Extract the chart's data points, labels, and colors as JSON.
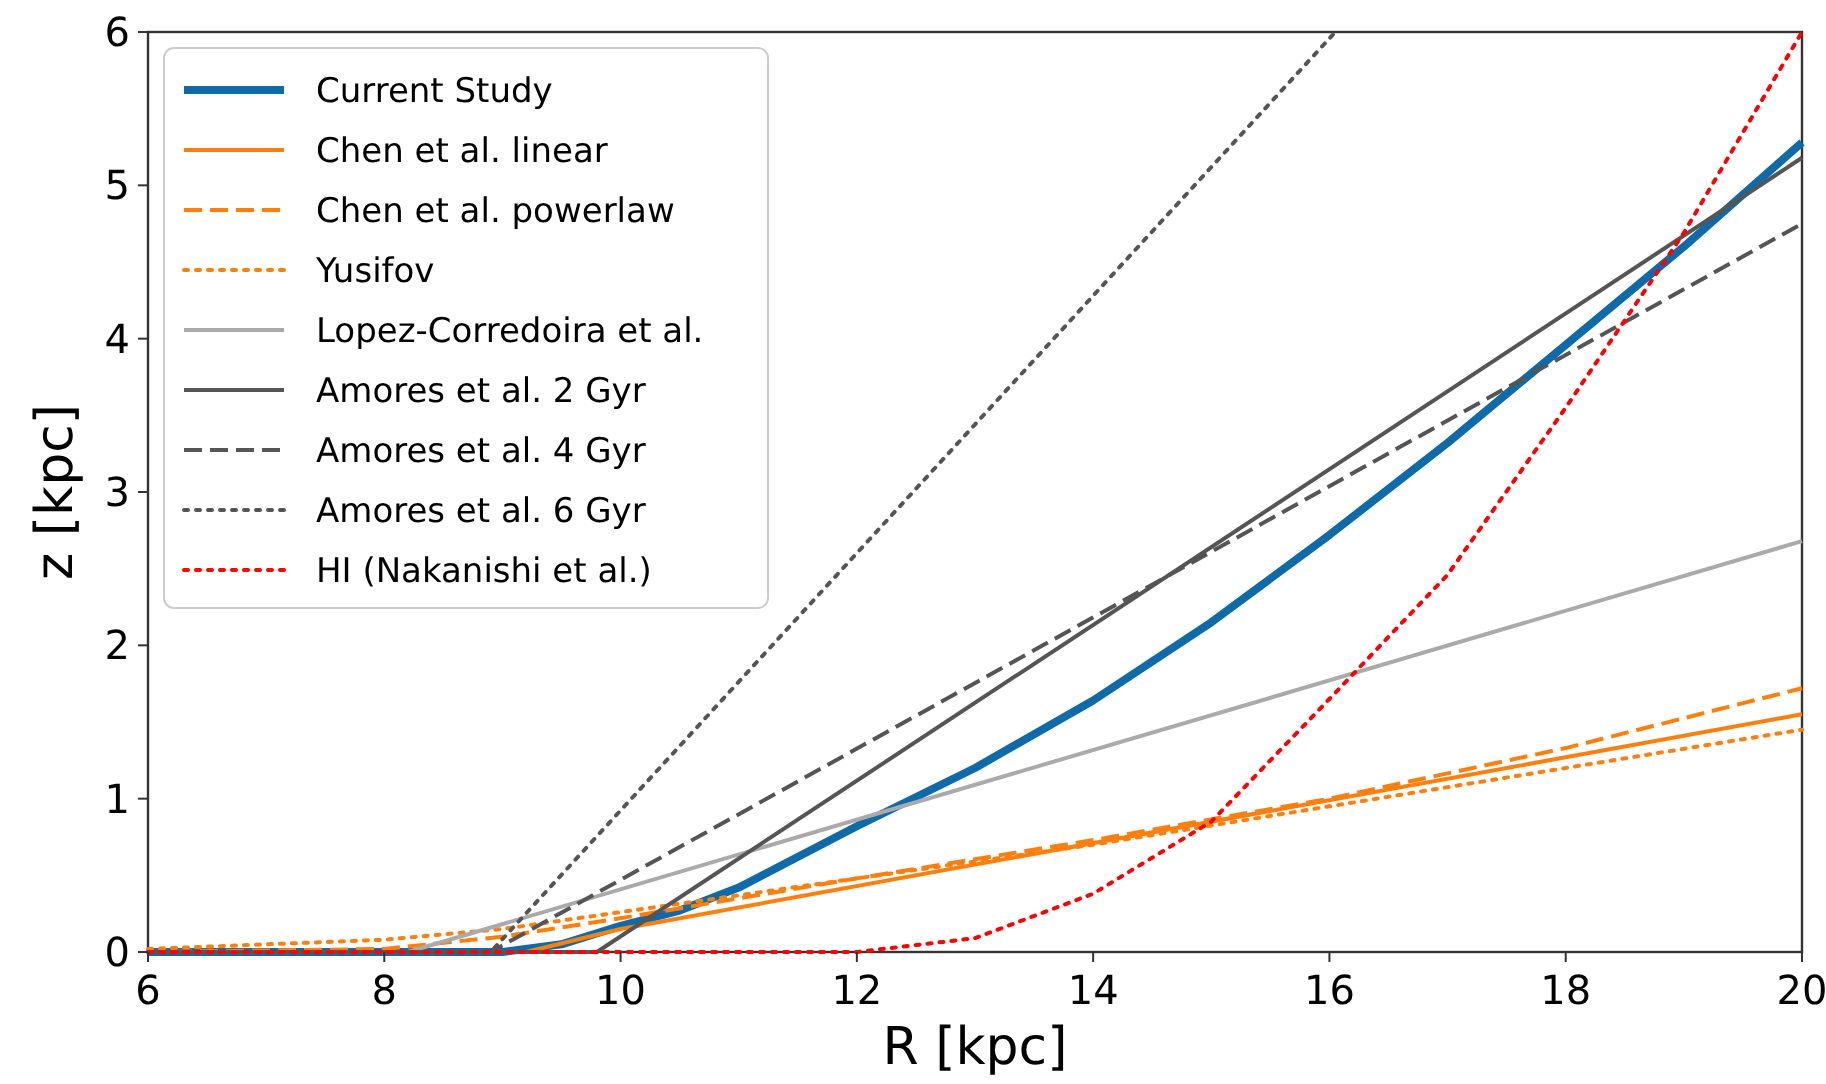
{
  "chart_data": {
    "type": "line",
    "xlabel": "R [kpc]",
    "ylabel": "z [kpc]",
    "xlim": [
      6,
      20
    ],
    "ylim": [
      0,
      6
    ],
    "xticks": [
      6,
      8,
      10,
      12,
      14,
      16,
      18,
      20
    ],
    "yticks": [
      0,
      1,
      2,
      3,
      4,
      5,
      6
    ],
    "grid": false,
    "legend": "top left",
    "marker": "none",
    "series": [
      {
        "name": "Current Study",
        "color": "#0e6aa8",
        "line_style": "solid",
        "x": [
          6,
          9,
          9.5,
          10,
          10.5,
          11,
          12,
          13,
          14,
          15,
          16,
          17,
          18,
          19,
          20
        ],
        "values": [
          0,
          0,
          0.05,
          0.17,
          0.27,
          0.42,
          0.82,
          1.2,
          1.64,
          2.15,
          2.72,
          3.32,
          3.96,
          4.6,
          5.28
        ]
      },
      {
        "name": "Chen et al. linear",
        "color": "#ff7f0e",
        "line_style": "solid",
        "x": [
          6,
          9.2,
          10,
          20
        ],
        "values": [
          0,
          0,
          0.15,
          1.55
        ]
      },
      {
        "name": "Chen et al. powerlaw",
        "color": "#ff7f0e",
        "line_style": "dashed",
        "x": [
          6,
          7,
          8,
          9,
          10,
          12,
          14,
          16,
          18,
          20
        ],
        "values": [
          0,
          0.01,
          0.02,
          0.1,
          0.22,
          0.48,
          0.73,
          1.0,
          1.33,
          1.72
        ]
      },
      {
        "name": "Yusifov",
        "color": "#ff7f0e",
        "line_style": "dotted",
        "x": [
          6,
          8,
          9,
          10,
          12,
          14,
          16,
          18,
          20
        ],
        "values": [
          0.02,
          0.08,
          0.15,
          0.26,
          0.48,
          0.7,
          0.95,
          1.2,
          1.45
        ]
      },
      {
        "name": "Lopez-Corredoira et al.",
        "color": "#aaaaaa",
        "line_style": "solid",
        "x": [
          6,
          8.2,
          20
        ],
        "values": [
          0,
          0,
          2.68
        ]
      },
      {
        "name": "Amores et al. 2 Gyr",
        "color": "#555555",
        "line_style": "solid",
        "x": [
          6,
          9.8,
          20
        ],
        "values": [
          0,
          0,
          5.18
        ]
      },
      {
        "name": "Amores et al. 4 Gyr",
        "color": "#555555",
        "line_style": "dashed",
        "x": [
          6,
          8.9,
          20
        ],
        "values": [
          0,
          0,
          4.75
        ]
      },
      {
        "name": "Amores et al. 6 Gyr",
        "color": "#555555",
        "line_style": "dotted",
        "x": [
          6,
          8.9,
          16.05
        ],
        "values": [
          0,
          0,
          6
        ]
      },
      {
        "name": "HI (Nakanishi et al.)",
        "color": "#ff0000",
        "line_style": "dotted",
        "x": [
          6,
          12,
          13,
          14,
          15,
          16,
          17,
          18,
          19,
          20
        ],
        "values": [
          0,
          0,
          0.09,
          0.38,
          0.85,
          1.65,
          2.46,
          3.55,
          4.69,
          6
        ]
      }
    ]
  }
}
